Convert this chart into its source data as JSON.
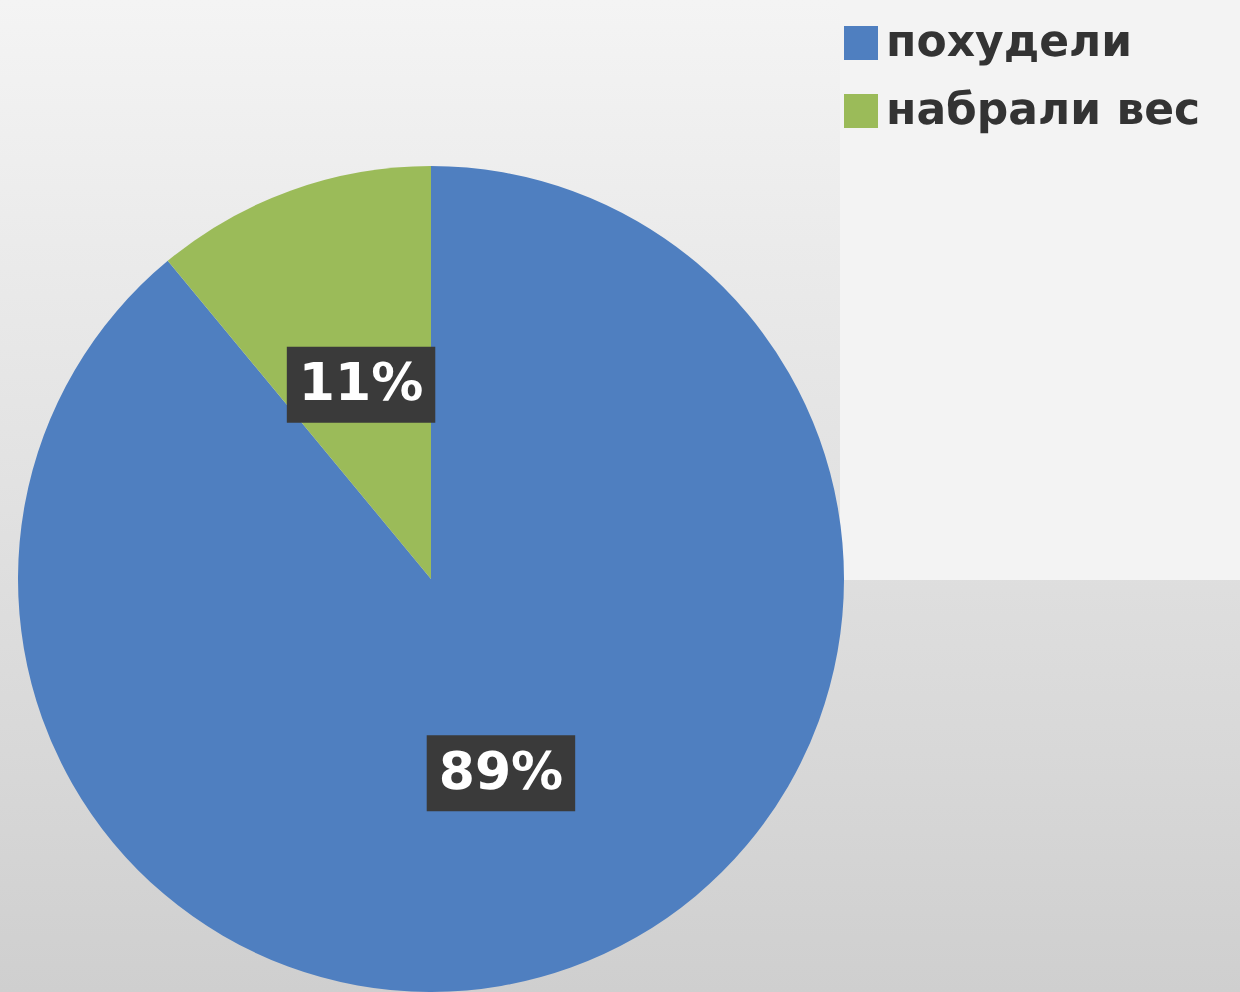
{
  "chart_data": {
    "type": "pie",
    "categories": [
      "похудели",
      "набрали вес"
    ],
    "values": [
      89,
      11
    ],
    "colors": [
      "#4f7fc0",
      "#9bbb59"
    ],
    "legend": "top right",
    "value_labels": [
      "89%",
      "11%"
    ]
  }
}
